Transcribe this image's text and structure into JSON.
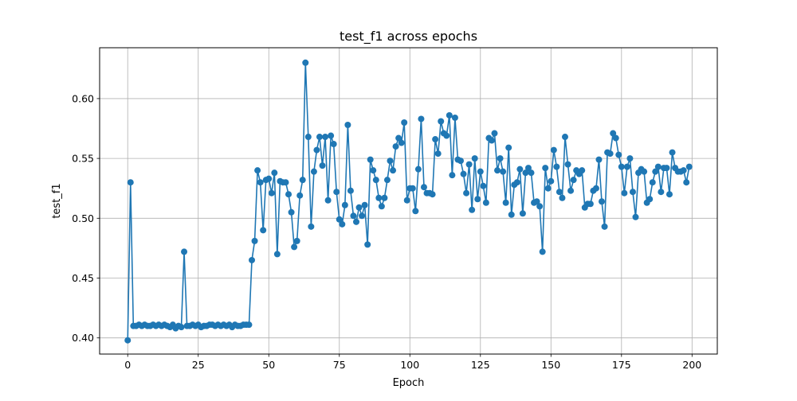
{
  "chart_data": {
    "type": "line",
    "title": "test_f1 across epochs",
    "xlabel": "Epoch",
    "ylabel": "test_f1",
    "xlim": [
      -9.95,
      208.95
    ],
    "ylim": [
      0.3865,
      0.6425
    ],
    "xticks": [
      0,
      25,
      50,
      75,
      100,
      125,
      150,
      175,
      200
    ],
    "yticks": [
      0.4,
      0.45,
      0.5,
      0.55,
      0.6
    ],
    "xtick_labels": [
      "0",
      "25",
      "50",
      "75",
      "100",
      "125",
      "150",
      "175",
      "200"
    ],
    "ytick_labels": [
      "0.40",
      "0.45",
      "0.50",
      "0.55",
      "0.60"
    ],
    "grid": true,
    "markers": true,
    "color": "#1f77b4",
    "series": [
      {
        "x": [
          0,
          1,
          2,
          3,
          4,
          5,
          6,
          7,
          8,
          9,
          10,
          11,
          12,
          13,
          14,
          15,
          16,
          17,
          18,
          19,
          20,
          21,
          22,
          23,
          24,
          25,
          26,
          27,
          28,
          29,
          30,
          31,
          32,
          33,
          34,
          35,
          36,
          37,
          38,
          39,
          40,
          41,
          42,
          43,
          44,
          45,
          46,
          47,
          48,
          49,
          50,
          51,
          52,
          53,
          54,
          55,
          56,
          57,
          58,
          59,
          60,
          61,
          62,
          63,
          64,
          65,
          66,
          67,
          68,
          69,
          70,
          71,
          72,
          73,
          74,
          75,
          76,
          77,
          78,
          79,
          80,
          81,
          82,
          83,
          84,
          85,
          86,
          87,
          88,
          89,
          90,
          91,
          92,
          93,
          94,
          95,
          96,
          97,
          98,
          99,
          100,
          101,
          102,
          103,
          104,
          105,
          106,
          107,
          108,
          109,
          110,
          111,
          112,
          113,
          114,
          115,
          116,
          117,
          118,
          119,
          120,
          121,
          122,
          123,
          124,
          125,
          126,
          127,
          128,
          129,
          130,
          131,
          132,
          133,
          134,
          135,
          136,
          137,
          138,
          139,
          140,
          141,
          142,
          143,
          144,
          145,
          146,
          147,
          148,
          149,
          150,
          151,
          152,
          153,
          154,
          155,
          156,
          157,
          158,
          159,
          160,
          161,
          162,
          163,
          164,
          165,
          166,
          167,
          168,
          169,
          170,
          171,
          172,
          173,
          174,
          175,
          176,
          177,
          178,
          179,
          180,
          181,
          182,
          183,
          184,
          185,
          186,
          187,
          188,
          189,
          190,
          191,
          192,
          193,
          194,
          195,
          196,
          197,
          198,
          199
        ],
        "values": [
          0.398,
          0.53,
          0.41,
          0.41,
          0.411,
          0.41,
          0.411,
          0.41,
          0.41,
          0.411,
          0.41,
          0.411,
          0.41,
          0.411,
          0.41,
          0.409,
          0.411,
          0.408,
          0.41,
          0.409,
          0.472,
          0.41,
          0.41,
          0.411,
          0.41,
          0.411,
          0.409,
          0.41,
          0.41,
          0.411,
          0.411,
          0.41,
          0.411,
          0.41,
          0.411,
          0.41,
          0.411,
          0.409,
          0.411,
          0.41,
          0.41,
          0.411,
          0.411,
          0.411,
          0.465,
          0.481,
          0.54,
          0.53,
          0.49,
          0.532,
          0.533,
          0.521,
          0.538,
          0.47,
          0.531,
          0.53,
          0.53,
          0.52,
          0.505,
          0.476,
          0.481,
          0.519,
          0.532,
          0.63,
          0.568,
          0.493,
          0.539,
          0.557,
          0.568,
          0.544,
          0.568,
          0.515,
          0.569,
          0.562,
          0.522,
          0.499,
          0.495,
          0.511,
          0.578,
          0.523,
          0.502,
          0.497,
          0.509,
          0.502,
          0.511,
          0.478,
          0.549,
          0.54,
          0.532,
          0.517,
          0.51,
          0.517,
          0.532,
          0.548,
          0.54,
          0.56,
          0.567,
          0.563,
          0.58,
          0.515,
          0.525,
          0.525,
          0.506,
          0.541,
          0.583,
          0.526,
          0.521,
          0.521,
          0.52,
          0.566,
          0.554,
          0.581,
          0.571,
          0.569,
          0.586,
          0.536,
          0.584,
          0.549,
          0.548,
          0.537,
          0.521,
          0.545,
          0.507,
          0.55,
          0.516,
          0.539,
          0.527,
          0.513,
          0.567,
          0.565,
          0.571,
          0.54,
          0.55,
          0.539,
          0.513,
          0.559,
          0.503,
          0.528,
          0.53,
          0.541,
          0.504,
          0.538,
          0.542,
          0.538,
          0.513,
          0.514,
          0.51,
          0.472,
          0.542,
          0.525,
          0.531,
          0.557,
          0.543,
          0.522,
          0.517,
          0.568,
          0.545,
          0.523,
          0.532,
          0.54,
          0.537,
          0.54,
          0.509,
          0.512,
          0.512,
          0.523,
          0.525,
          0.549,
          0.514,
          0.493,
          0.555,
          0.554,
          0.571,
          0.567,
          0.553,
          0.543,
          0.521,
          0.543,
          0.55,
          0.522,
          0.501,
          0.538,
          0.541,
          0.539,
          0.513,
          0.516,
          0.53,
          0.539,
          0.543,
          0.522,
          0.542,
          0.542,
          0.52,
          0.555,
          0.542,
          0.539,
          0.539,
          0.54,
          0.53,
          0.543
        ]
      }
    ]
  }
}
